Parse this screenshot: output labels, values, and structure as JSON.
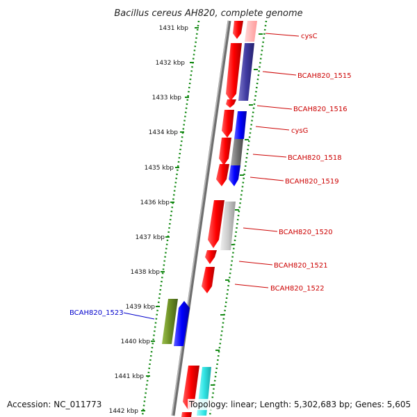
{
  "title": "Bacillus cereus AH820, complete genome",
  "scale_labels": [
    "1431 kbp",
    "1432 kbp",
    "1433 kbp",
    "1434 kbp",
    "1435 kbp",
    "1436 kbp",
    "1437 kbp",
    "1438 kbp",
    "1439 kbp",
    "1440 kbp",
    "1441 kbp",
    "1442 kbp"
  ],
  "gene_labels": [
    {
      "text": "cysC",
      "color": "#cc0000"
    },
    {
      "text": "BCAH820_1515",
      "color": "#cc0000"
    },
    {
      "text": "BCAH820_1516",
      "color": "#cc0000"
    },
    {
      "text": "cysG",
      "color": "#cc0000"
    },
    {
      "text": "BCAH820_1518",
      "color": "#cc0000"
    },
    {
      "text": "BCAH820_1519",
      "color": "#cc0000"
    },
    {
      "text": "BCAH820_1520",
      "color": "#cc0000"
    },
    {
      "text": "BCAH820_1521",
      "color": "#cc0000"
    },
    {
      "text": "BCAH820_1522",
      "color": "#cc0000"
    },
    {
      "text": "BCAH820_1523",
      "color": "#0000cc"
    }
  ],
  "colors": {
    "backbone": "#888888",
    "scale_dots": "#118811",
    "gene_red": "#ff1a1a",
    "navy": "#3f3aa0",
    "blue": "#1a1aff",
    "gray": "#777777",
    "light_gray": "#c8c8c8",
    "olive": "#6b8e23",
    "cyan": "#33e6e6"
  },
  "footer": {
    "accession": "Accession: NC_011773",
    "info": "Topology: linear; Length: 5,302,683 bp; Genes: 5,605"
  }
}
